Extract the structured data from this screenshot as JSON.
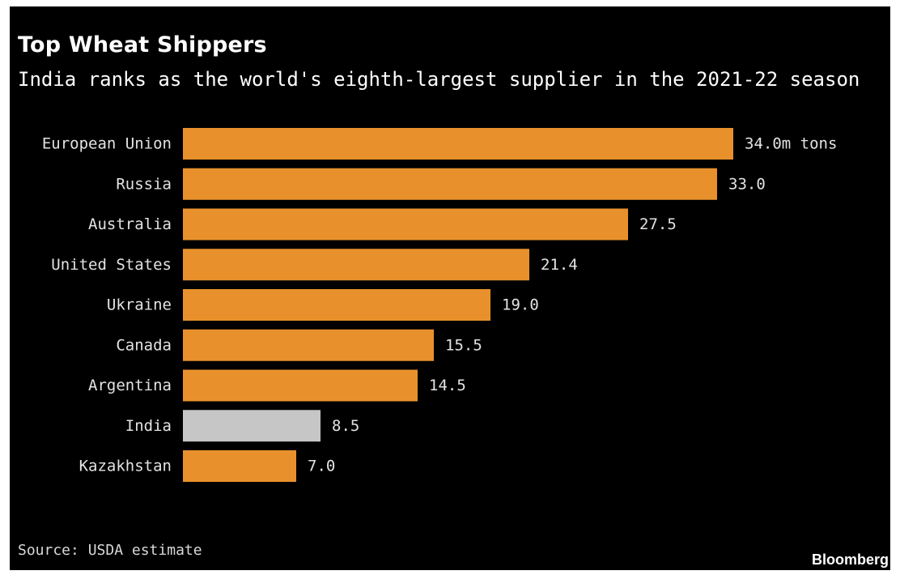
{
  "chart_data": {
    "type": "bar",
    "orientation": "horizontal",
    "title": "Top Wheat Shippers",
    "subtitle": "India ranks as the world's eighth-largest supplier in the 2021-22 season",
    "categories": [
      "European Union",
      "Russia",
      "Australia",
      "United States",
      "Ukraine",
      "Canada",
      "Argentina",
      "India",
      "Kazakhstan"
    ],
    "values": [
      34.0,
      33.0,
      27.5,
      21.4,
      19.0,
      15.5,
      14.5,
      8.5,
      7.0
    ],
    "value_labels": [
      "34.0m tons",
      "33.0",
      "27.5",
      "21.4",
      "19.0",
      "15.5",
      "14.5",
      "8.5",
      "7.0"
    ],
    "unit": "m tons",
    "highlight_category": "India",
    "colors": {
      "bar": "#e8912c",
      "highlight": "#c6c6c6",
      "background": "#000000",
      "text": "#e3e3e3"
    },
    "xlabel": "",
    "ylabel": "",
    "xlim": [
      0,
      34.0
    ],
    "grid": false,
    "legend": "none"
  },
  "footer": {
    "source": "Source: USDA estimate",
    "brand": "Bloomberg"
  }
}
